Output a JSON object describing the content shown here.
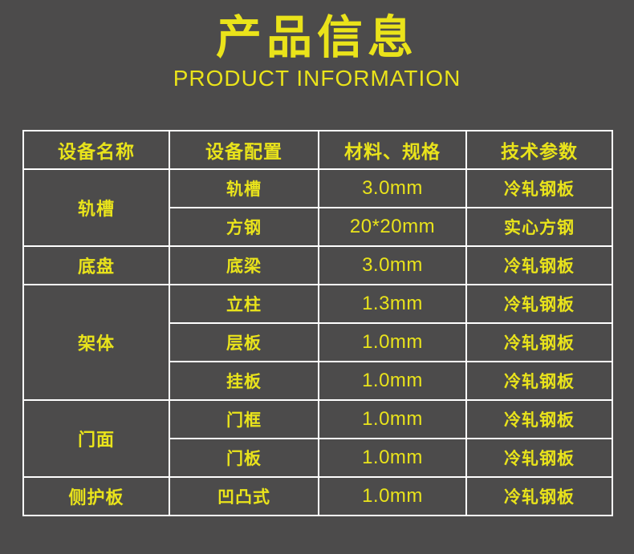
{
  "page": {
    "title": "产品信息",
    "subtitle": "PRODUCT INFORMATION"
  },
  "colors": {
    "background": "#4c4b4b",
    "accent_yellow": "#e9e31b",
    "table_border": "#ffffff"
  },
  "table": {
    "headers": [
      "设备名称",
      "设备配置",
      "材料、规格",
      "技术参数"
    ],
    "groups": [
      {
        "name": "轨槽",
        "rows": [
          {
            "config": "轨槽",
            "spec": "3.0mm",
            "param": "冷轧钢板"
          },
          {
            "config": "方钢",
            "spec": "20*20mm",
            "param": "实心方钢"
          }
        ]
      },
      {
        "name": "底盘",
        "rows": [
          {
            "config": "底梁",
            "spec": "3.0mm",
            "param": "冷轧钢板"
          }
        ]
      },
      {
        "name": "架体",
        "rows": [
          {
            "config": "立柱",
            "spec": "1.3mm",
            "param": "冷轧钢板"
          },
          {
            "config": "层板",
            "spec": "1.0mm",
            "param": "冷轧钢板"
          },
          {
            "config": "挂板",
            "spec": "1.0mm",
            "param": "冷轧钢板"
          }
        ]
      },
      {
        "name": "门面",
        "rows": [
          {
            "config": "门框",
            "spec": "1.0mm",
            "param": "冷轧钢板"
          },
          {
            "config": "门板",
            "spec": "1.0mm",
            "param": "冷轧钢板"
          }
        ]
      },
      {
        "name": "侧护板",
        "rows": [
          {
            "config": "凹凸式",
            "spec": "1.0mm",
            "param": "冷轧钢板"
          }
        ]
      }
    ]
  }
}
